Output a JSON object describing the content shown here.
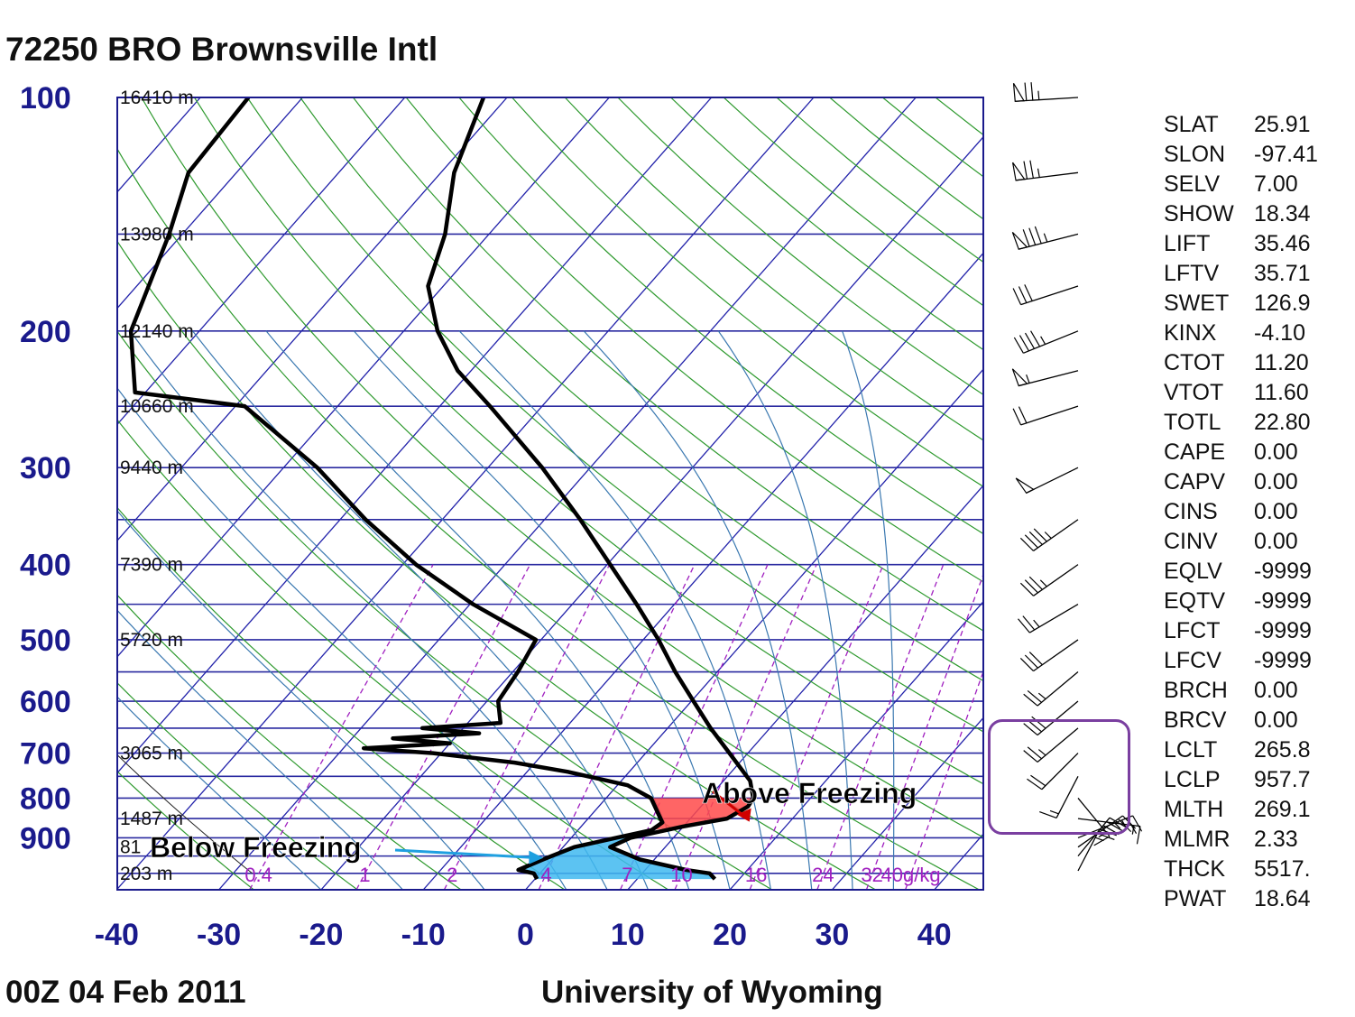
{
  "header": {
    "station": "72250 BRO Brownsville Intl"
  },
  "footer": {
    "time": "00Z 04 Feb 2011",
    "source": "University of Wyoming"
  },
  "colors": {
    "frame": "#1a1a8c",
    "isobar": "#2a2aa0",
    "isotherm": "#2222aa",
    "dry_adiabat": "#2f9a2f",
    "moist_adiabat": "#3a78b0",
    "mixing_ratio": "#a020c0",
    "profile": "#000000",
    "warm_layer": "#ff4a4a",
    "cold_layer": "#40b8f0",
    "arrow_warm": "#d00000",
    "arrow_cold": "#1fa0e0",
    "highlight_box": "#7a3fa0"
  },
  "chart_data": {
    "type": "skew-t log-p",
    "title": "72250 BRO Brownsville Intl",
    "xlabel": "",
    "ylabel": "",
    "xlim": [
      -40,
      45
    ],
    "ylim_hpa": [
      1050,
      100
    ],
    "pressure_ticks": [
      "100",
      "200",
      "300",
      "400",
      "500",
      "600",
      "700",
      "800",
      "900"
    ],
    "pressure_tick_values": [
      100,
      200,
      300,
      400,
      500,
      600,
      700,
      800,
      900
    ],
    "temperature_ticks": [
      "-40",
      "-30",
      "-20",
      "-10",
      "0",
      "10",
      "20",
      "30",
      "40"
    ],
    "temperature_tick_values": [
      -40,
      -30,
      -20,
      -10,
      0,
      10,
      20,
      30,
      40
    ],
    "height_labels": [
      {
        "p": 100,
        "text": "16410 m"
      },
      {
        "p": 150,
        "text": "13980 m"
      },
      {
        "p": 200,
        "text": "12140 m"
      },
      {
        "p": 250,
        "text": "10660 m"
      },
      {
        "p": 300,
        "text": "9440 m"
      },
      {
        "p": 400,
        "text": "7390 m"
      },
      {
        "p": 500,
        "text": "5720 m"
      },
      {
        "p": 700,
        "text": "3065 m"
      },
      {
        "p": 850,
        "text": "1487 m"
      },
      {
        "p": 925,
        "text": "81"
      },
      {
        "p": 1000,
        "text": "203 m"
      }
    ],
    "mixing_ratio_labels": [
      "0.4",
      "1",
      "2",
      "4",
      "7",
      "10",
      "16",
      "24",
      "32",
      "40g/kg"
    ],
    "mixing_ratio_values": [
      0.4,
      1,
      2,
      4,
      7,
      10,
      16,
      24,
      32,
      40
    ],
    "temperature_profile": [
      {
        "p": 1017,
        "t": 17.6
      },
      {
        "p": 1000,
        "t": 16.6
      },
      {
        "p": 990,
        "t": 14.0
      },
      {
        "p": 960,
        "t": 8.6
      },
      {
        "p": 925,
        "t": 4.6
      },
      {
        "p": 900,
        "t": 5.8
      },
      {
        "p": 870,
        "t": 10.0
      },
      {
        "p": 850,
        "t": 13.6
      },
      {
        "p": 820,
        "t": 14.6
      },
      {
        "p": 800,
        "t": 14.4
      },
      {
        "p": 760,
        "t": 12.6
      },
      {
        "p": 700,
        "t": 8.2
      },
      {
        "p": 650,
        "t": 4.2
      },
      {
        "p": 600,
        "t": 0.2
      },
      {
        "p": 550,
        "t": -4.1
      },
      {
        "p": 500,
        "t": -8.5
      },
      {
        "p": 450,
        "t": -13.7
      },
      {
        "p": 400,
        "t": -19.7
      },
      {
        "p": 350,
        "t": -26.5
      },
      {
        "p": 300,
        "t": -34.7
      },
      {
        "p": 250,
        "t": -45.1
      },
      {
        "p": 225,
        "t": -51.3
      },
      {
        "p": 200,
        "t": -56.7
      },
      {
        "p": 175,
        "t": -61.5
      },
      {
        "p": 150,
        "t": -64.3
      },
      {
        "p": 125,
        "t": -68.7
      },
      {
        "p": 100,
        "t": -72.3
      }
    ],
    "dewpoint_profile": [
      {
        "p": 1017,
        "td": 0.2
      },
      {
        "p": 1000,
        "td": -0.6
      },
      {
        "p": 990,
        "td": -2.4
      },
      {
        "p": 960,
        "td": -0.9
      },
      {
        "p": 925,
        "td": 1.1
      },
      {
        "p": 900,
        "td": 4.4
      },
      {
        "p": 880,
        "td": 7.2
      },
      {
        "p": 860,
        "td": 7.6
      },
      {
        "p": 800,
        "td": 4.4
      },
      {
        "p": 770,
        "td": 1.0
      },
      {
        "p": 740,
        "td": -6.0
      },
      {
        "p": 720,
        "td": -12.0
      },
      {
        "p": 700,
        "td": -20.8
      },
      {
        "p": 690,
        "td": -28.0
      },
      {
        "p": 680,
        "td": -20.0
      },
      {
        "p": 670,
        "td": -26.0
      },
      {
        "p": 660,
        "td": -18.0
      },
      {
        "p": 650,
        "td": -24.0
      },
      {
        "p": 640,
        "td": -16.8
      },
      {
        "p": 600,
        "td": -18.9
      },
      {
        "p": 550,
        "td": -19.5
      },
      {
        "p": 500,
        "td": -20.5
      },
      {
        "p": 450,
        "td": -29.7
      },
      {
        "p": 400,
        "td": -38.7
      },
      {
        "p": 350,
        "td": -47.5
      },
      {
        "p": 300,
        "td": -56.7
      },
      {
        "p": 250,
        "td": -69.1
      },
      {
        "p": 240,
        "td": -81.0
      },
      {
        "p": 200,
        "td": -86.7
      },
      {
        "p": 150,
        "td": -91.3
      },
      {
        "p": 125,
        "td": -94.7
      },
      {
        "p": 100,
        "td": -95.3
      }
    ],
    "annotations": [
      {
        "text": "Above Freezing"
      },
      {
        "text": "Below Freezing"
      }
    ]
  },
  "indices": [
    {
      "name": "SLAT",
      "value": "25.91"
    },
    {
      "name": "SLON",
      "value": "-97.41"
    },
    {
      "name": "SELV",
      "value": "7.00"
    },
    {
      "name": "SHOW",
      "value": "18.34"
    },
    {
      "name": "LIFT",
      "value": "35.46"
    },
    {
      "name": "LFTV",
      "value": "35.71"
    },
    {
      "name": "SWET",
      "value": "126.9"
    },
    {
      "name": "KINX",
      "value": "-4.10"
    },
    {
      "name": "CTOT",
      "value": "11.20"
    },
    {
      "name": "VTOT",
      "value": "11.60"
    },
    {
      "name": "TOTL",
      "value": "22.80"
    },
    {
      "name": "CAPE",
      "value": "0.00"
    },
    {
      "name": "CAPV",
      "value": "0.00"
    },
    {
      "name": "CINS",
      "value": "0.00"
    },
    {
      "name": "CINV",
      "value": "0.00"
    },
    {
      "name": "EQLV",
      "value": "-9999"
    },
    {
      "name": "EQTV",
      "value": "-9999"
    },
    {
      "name": "LFCT",
      "value": "-9999"
    },
    {
      "name": "LFCV",
      "value": "-9999"
    },
    {
      "name": "BRCH",
      "value": "0.00"
    },
    {
      "name": "BRCV",
      "value": "0.00"
    },
    {
      "name": "LCLT",
      "value": "265.8"
    },
    {
      "name": "LCLP",
      "value": "957.7"
    },
    {
      "name": "MLTH",
      "value": "269.1"
    },
    {
      "name": "MLMR",
      "value": "2.33"
    },
    {
      "name": "THCK",
      "value": "5517."
    },
    {
      "name": "PWAT",
      "value": "18.64"
    }
  ],
  "wind_barbs": [
    {
      "p": 100,
      "dir": 265,
      "kt": 75
    },
    {
      "p": 125,
      "dir": 260,
      "kt": 75
    },
    {
      "p": 150,
      "dir": 250,
      "kt": 85
    },
    {
      "p": 175,
      "dir": 245,
      "kt": 30
    },
    {
      "p": 200,
      "dir": 240,
      "kt": 45
    },
    {
      "p": 225,
      "dir": 250,
      "kt": 55
    },
    {
      "p": 250,
      "dir": 245,
      "kt": 20
    },
    {
      "p": 300,
      "dir": 235,
      "kt": 50
    },
    {
      "p": 350,
      "dir": 225,
      "kt": 45
    },
    {
      "p": 400,
      "dir": 225,
      "kt": 35
    },
    {
      "p": 450,
      "dir": 230,
      "kt": 25
    },
    {
      "p": 500,
      "dir": 225,
      "kt": 30
    },
    {
      "p": 550,
      "dir": 220,
      "kt": 25
    },
    {
      "p": 600,
      "dir": 220,
      "kt": 30
    },
    {
      "p": 650,
      "dir": 220,
      "kt": 25
    },
    {
      "p": 700,
      "dir": 215,
      "kt": 20
    },
    {
      "p": 750,
      "dir": 200,
      "kt": 15
    },
    {
      "p": 800,
      "dir": 150,
      "kt": 15
    },
    {
      "p": 850,
      "dir": 100,
      "kt": 15
    },
    {
      "p": 900,
      "dir": 60,
      "kt": 25
    },
    {
      "p": 925,
      "dir": 45,
      "kt": 25
    },
    {
      "p": 950,
      "dir": 30,
      "kt": 30
    },
    {
      "p": 1000,
      "dir": 20,
      "kt": 25
    }
  ]
}
